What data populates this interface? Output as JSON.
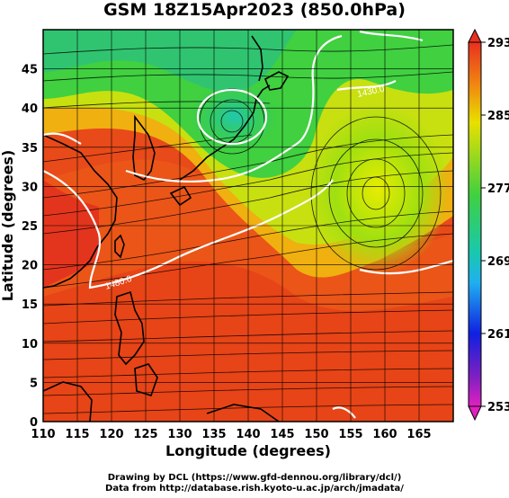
{
  "title": "GSM 18Z15Apr2023 (850.0hPa)",
  "xaxis": {
    "label": "Longitude (degrees)",
    "ticks": [
      "110",
      "115",
      "120",
      "125",
      "130",
      "135",
      "140",
      "145",
      "150",
      "155",
      "160",
      "165"
    ]
  },
  "yaxis": {
    "label": "Latitude (degrees)",
    "ticks": [
      "0",
      "5",
      "10",
      "15",
      "20",
      "25",
      "30",
      "35",
      "40",
      "45"
    ]
  },
  "colorbar": {
    "ticks": [
      "293",
      "285",
      "277",
      "269",
      "261",
      "253"
    ],
    "min": 253,
    "max": 293
  },
  "contour_labels": [
    "1480.0",
    "1430.0"
  ],
  "credits": [
    "Drawing by DCL (https://www.gfd-dennou.org/library/dcl/)",
    "Data from http://database.rish.kyoto-u.ac.jp/arch/jmadata/"
  ],
  "colors": {
    "warm": "#e8401f",
    "mid": "#f0a000",
    "yellow": "#e8e800",
    "green": "#22c040",
    "cyan": "#20b8e0",
    "white_contour": "#ffffff"
  }
}
